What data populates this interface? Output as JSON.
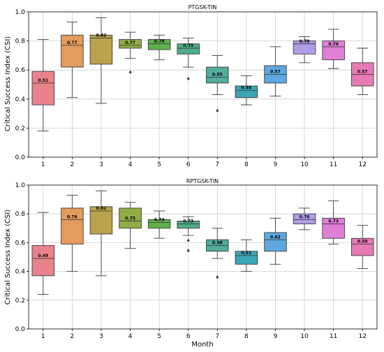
{
  "chart_data": {
    "type": "box",
    "ylabel": "Critical Success Index (CSI)",
    "xlabel": "Month",
    "categories": [
      "1",
      "2",
      "3",
      "4",
      "5",
      "6",
      "7",
      "8",
      "9",
      "10",
      "11",
      "12"
    ],
    "ylim": [
      0.0,
      1.0
    ],
    "yticks": [
      "0.0",
      "0.2",
      "0.4",
      "0.6",
      "0.8",
      "1.0"
    ],
    "grid": true,
    "colors": [
      "#e8838d",
      "#e39b5e",
      "#b9a34c",
      "#8fad43",
      "#5fb24f",
      "#4fae86",
      "#52ad9c",
      "#3aa7b7",
      "#5ea8df",
      "#b19ce8",
      "#e07fd6",
      "#e67ab4"
    ],
    "panels": [
      {
        "title": "PTGSK-TIN",
        "stats": [
          {
            "min": 0.18,
            "q1": 0.36,
            "median": 0.51,
            "q3": 0.59,
            "max": 0.81,
            "label": "0.51",
            "outliers": []
          },
          {
            "min": 0.41,
            "q1": 0.62,
            "median": 0.77,
            "q3": 0.84,
            "max": 0.93,
            "label": "0.77",
            "outliers": []
          },
          {
            "min": 0.37,
            "q1": 0.64,
            "median": 0.82,
            "q3": 0.84,
            "max": 0.96,
            "label": "0.82",
            "outliers": []
          },
          {
            "min": 0.68,
            "q1": 0.75,
            "median": 0.77,
            "q3": 0.81,
            "max": 0.86,
            "label": "0.77",
            "outliers": [
              0.585
            ]
          },
          {
            "min": 0.67,
            "q1": 0.74,
            "median": 0.78,
            "q3": 0.81,
            "max": 0.84,
            "label": "0.78",
            "outliers": []
          },
          {
            "min": 0.62,
            "q1": 0.71,
            "median": 0.75,
            "q3": 0.78,
            "max": 0.82,
            "label": "0.75",
            "outliers": [
              0.54
            ]
          },
          {
            "min": 0.43,
            "q1": 0.51,
            "median": 0.55,
            "q3": 0.62,
            "max": 0.7,
            "label": "0.55",
            "outliers": [
              0.32
            ]
          },
          {
            "min": 0.36,
            "q1": 0.41,
            "median": 0.46,
            "q3": 0.49,
            "max": 0.56,
            "label": "0.46",
            "outliers": []
          },
          {
            "min": 0.42,
            "q1": 0.51,
            "median": 0.57,
            "q3": 0.63,
            "max": 0.76,
            "label": "0.57",
            "outliers": []
          },
          {
            "min": 0.65,
            "q1": 0.71,
            "median": 0.78,
            "q3": 0.8,
            "max": 0.83,
            "label": "0.78",
            "outliers": []
          },
          {
            "min": 0.61,
            "q1": 0.67,
            "median": 0.76,
            "q3": 0.8,
            "max": 0.88,
            "label": "0.76",
            "outliers": []
          },
          {
            "min": 0.43,
            "q1": 0.49,
            "median": 0.57,
            "q3": 0.65,
            "max": 0.75,
            "label": "0.57",
            "outliers": []
          }
        ]
      },
      {
        "title": "RPTGSK-TIN",
        "stats": [
          {
            "min": 0.24,
            "q1": 0.37,
            "median": 0.49,
            "q3": 0.58,
            "max": 0.81,
            "label": "0.49",
            "outliers": []
          },
          {
            "min": 0.4,
            "q1": 0.59,
            "median": 0.76,
            "q3": 0.84,
            "max": 0.93,
            "label": "0.76",
            "outliers": []
          },
          {
            "min": 0.37,
            "q1": 0.66,
            "median": 0.82,
            "q3": 0.85,
            "max": 0.96,
            "label": "0.82",
            "outliers": []
          },
          {
            "min": 0.56,
            "q1": 0.7,
            "median": 0.75,
            "q3": 0.84,
            "max": 0.88,
            "label": "0.75",
            "outliers": []
          },
          {
            "min": 0.63,
            "q1": 0.7,
            "median": 0.74,
            "q3": 0.76,
            "max": 0.82,
            "label": "0.74",
            "outliers": []
          },
          {
            "min": 0.65,
            "q1": 0.7,
            "median": 0.73,
            "q3": 0.75,
            "max": 0.78,
            "label": "0.73",
            "outliers": [
              0.615,
              0.545
            ]
          },
          {
            "min": 0.49,
            "q1": 0.54,
            "median": 0.58,
            "q3": 0.62,
            "max": 0.7,
            "label": "0.58",
            "outliers": [
              0.36
            ]
          },
          {
            "min": 0.4,
            "q1": 0.45,
            "median": 0.51,
            "q3": 0.54,
            "max": 0.62,
            "label": "0.51",
            "outliers": []
          },
          {
            "min": 0.45,
            "q1": 0.54,
            "median": 0.62,
            "q3": 0.67,
            "max": 0.77,
            "label": "0.62",
            "outliers": []
          },
          {
            "min": 0.69,
            "q1": 0.73,
            "median": 0.76,
            "q3": 0.8,
            "max": 0.84,
            "label": "0.76",
            "outliers": []
          },
          {
            "min": 0.59,
            "q1": 0.63,
            "median": 0.73,
            "q3": 0.77,
            "max": 0.89,
            "label": "0.73",
            "outliers": []
          },
          {
            "min": 0.42,
            "q1": 0.51,
            "median": 0.59,
            "q3": 0.63,
            "max": 0.72,
            "label": "0.59",
            "outliers": []
          }
        ]
      }
    ]
  }
}
